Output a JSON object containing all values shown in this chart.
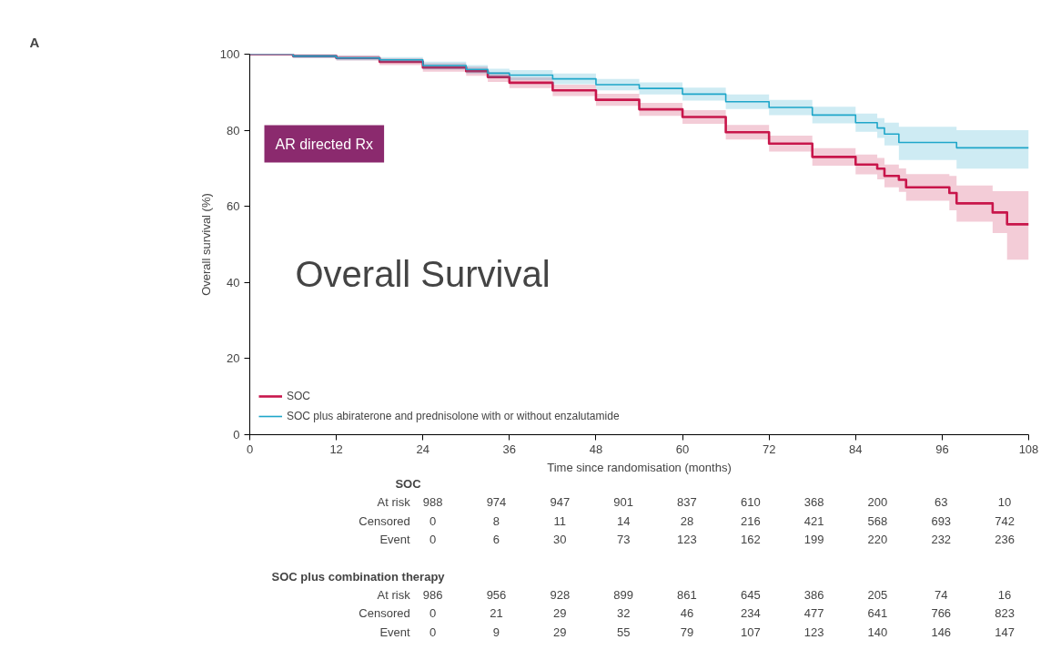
{
  "chart_data": {
    "type": "step",
    "xlabel": "Time since randomisation (months)",
    "ylabel": "Overall survival (%)",
    "x": [
      0,
      6,
      12,
      18,
      24,
      30,
      33,
      36,
      42,
      48,
      54,
      60,
      66,
      72,
      78,
      84,
      87,
      88,
      90,
      91,
      97,
      98,
      103,
      105,
      108
    ],
    "series": [
      {
        "name": "SOC",
        "color": "#c8164b",
        "values": [
          100,
          99.5,
          99,
          98,
          96.5,
          95.5,
          94,
          92.5,
          90.5,
          88,
          85.5,
          83.5,
          79.5,
          76.5,
          73,
          71,
          69.9,
          68,
          67,
          65,
          63.5,
          60.8,
          58.4,
          55.3,
          55.3
        ],
        "lower": [
          100,
          99,
          98.3,
          97.1,
          95.4,
          94.3,
          92.7,
          91.1,
          89,
          86.4,
          83.8,
          81.7,
          77.6,
          74.4,
          70.7,
          68.4,
          67.1,
          65,
          63.8,
          61.5,
          59,
          56,
          53,
          46,
          45.5
        ],
        "upper": [
          100,
          100,
          99.7,
          98.9,
          97.6,
          96.7,
          95.3,
          93.9,
          92,
          89.6,
          87.2,
          85.3,
          81.4,
          78.6,
          75.3,
          73.6,
          72.7,
          71,
          70,
          68.5,
          68,
          65.5,
          64,
          64,
          64
        ]
      },
      {
        "name": "SOC plus abiraterone and prednisolone with or without enzalutamide",
        "color": "#1ea6c9",
        "values": [
          100,
          99.5,
          99,
          98.5,
          97,
          96,
          95,
          94.5,
          93.5,
          92,
          91,
          89.5,
          87.5,
          86,
          84,
          82,
          80.6,
          79,
          76.8,
          76.8,
          76.8,
          75.4,
          75.4,
          75.4,
          75.4
        ],
        "lower": [
          100,
          99,
          98.4,
          97.8,
          96,
          94.9,
          93.8,
          93.2,
          92.1,
          90.5,
          89.4,
          87.8,
          85.6,
          84,
          81.8,
          79.6,
          78,
          76,
          72.2,
          72.2,
          72.2,
          69.9,
          69.9,
          69.9,
          69.9
        ],
        "upper": [
          100,
          100,
          99.6,
          99.2,
          98,
          97.1,
          96.2,
          95.8,
          94.9,
          93.5,
          92.6,
          91.2,
          89.4,
          88,
          86.2,
          84.4,
          83.2,
          82,
          80.9,
          80.9,
          80.9,
          80,
          80,
          80,
          80
        ]
      }
    ],
    "xlim": [
      0,
      108
    ],
    "xticks": [
      0,
      12,
      24,
      36,
      48,
      60,
      72,
      84,
      96,
      108
    ],
    "ylim": [
      0,
      100
    ],
    "yticks": [
      0,
      20,
      40,
      60,
      80,
      100
    ],
    "grid": false,
    "legend": "bottom left",
    "annotations": [
      "A",
      "AR directed Rx",
      "Overall Survival",
      "SOC",
      "At risk 988 974 947 901 837 610 368 200 63 10",
      "Censored 0 8 11 14 28 216 421 568 693 742",
      "Event 0 6 30 73 123 162 199 220 232 236",
      "SOC plus combination therapy",
      "At risk 986 956 928 899 861 645 386 205 74 16",
      "Censored 0 21 29 32 46 234 477 641 766 823",
      "Event 0 9 29 55 79 107 123 140 146 147"
    ]
  }
}
